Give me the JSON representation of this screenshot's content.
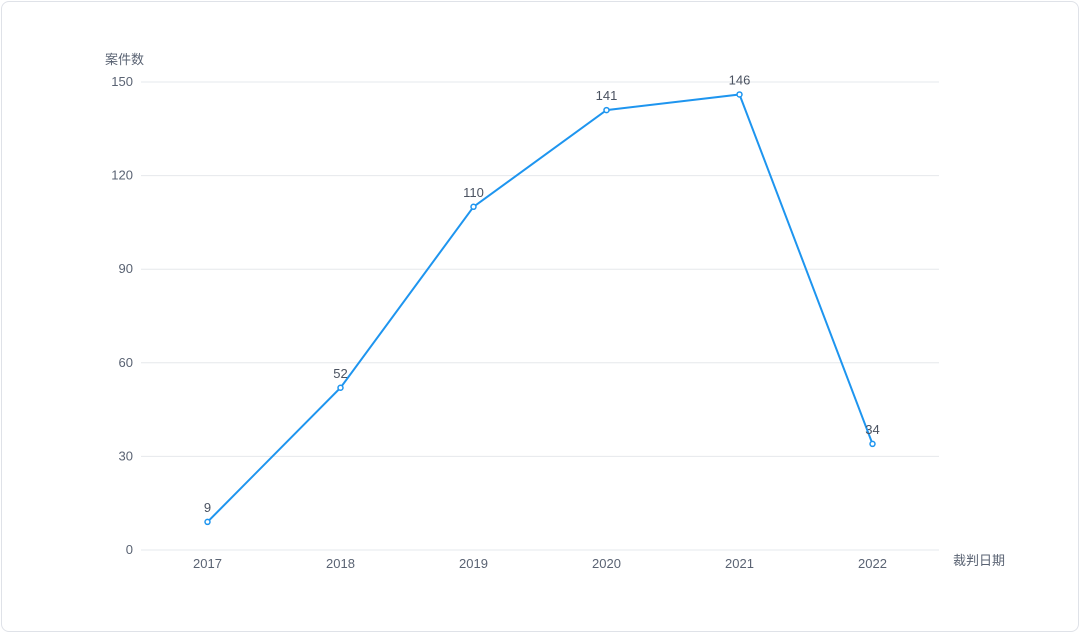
{
  "chart_data": {
    "type": "line",
    "title": "",
    "ylabel": "案件数",
    "xlabel": "裁判日期",
    "categories": [
      "2017",
      "2018",
      "2019",
      "2020",
      "2021",
      "2022"
    ],
    "series": [
      {
        "values": [
          9,
          52,
          110,
          141,
          146,
          34
        ],
        "color": "#1e95ef"
      }
    ],
    "ylim": [
      0,
      150
    ],
    "yticks": [
      "0",
      "30",
      "60",
      "90",
      "120",
      "150"
    ],
    "grid": true,
    "show_data_labels": true
  }
}
